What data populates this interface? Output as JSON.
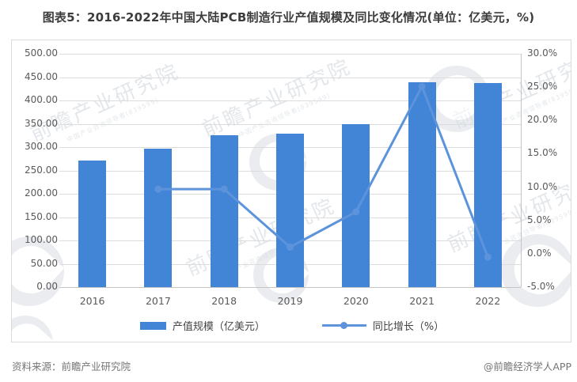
{
  "header": {
    "title": "图表5：2016-2022年中国大陆PCB制造行业产值规模及同比变化情况(单位：亿美元，%)"
  },
  "chart_data": {
    "type": "combo-bar-line",
    "categories": [
      "2016",
      "2017",
      "2018",
      "2019",
      "2020",
      "2021",
      "2022"
    ],
    "series": [
      {
        "name": "产值规模（亿美元）",
        "type": "bar",
        "axis": "left",
        "unit": "亿美元",
        "values": [
          271,
          297,
          326,
          329,
          350,
          439,
          437
        ]
      },
      {
        "name": "同比增长（%）",
        "type": "line",
        "axis": "right",
        "unit": "%",
        "values": [
          null,
          9.7,
          9.7,
          1.0,
          6.3,
          25.1,
          -0.5
        ]
      }
    ],
    "left_axis": {
      "min": 0,
      "max": 500,
      "step": 50,
      "ticks": [
        "500.00",
        "450.00",
        "400.00",
        "350.00",
        "300.00",
        "250.00",
        "200.00",
        "150.00",
        "100.00",
        "50.00",
        "0.00"
      ]
    },
    "right_axis": {
      "min": -5,
      "max": 30,
      "step": 5,
      "ticks": [
        "30.0%",
        "25.0%",
        "20.0%",
        "15.0%",
        "10.0%",
        "5.0%",
        "0.0%",
        "-5.0%"
      ]
    },
    "grid": true,
    "legend_position": "bottom"
  },
  "footer": {
    "source": "资料来源：前瞻产业研究院",
    "credit": "@前瞻经济学人APP"
  },
  "watermark": {
    "text": "前瞻产业研究院",
    "subtext": "中国产业咨询领导者(839599)"
  },
  "colors": {
    "bar": "#4285d6",
    "line": "#5c93db",
    "grid": "#dcdcdc",
    "axis": "#c4c4c4",
    "tick_text": "#595959",
    "title_text": "#3c3c3c",
    "footer_text": "#757575",
    "panel_border": "#dbdbdb"
  }
}
